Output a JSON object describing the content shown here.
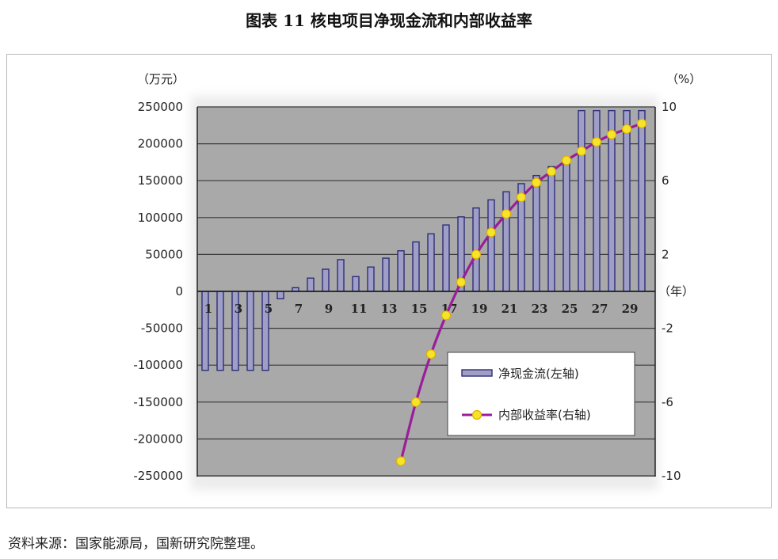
{
  "title": "图表 11   核电项目净现金流和内部收益率",
  "source": "资料来源：国家能源局，国新研究院整理。",
  "colors": {
    "plot_bg": "#a9a9a9",
    "bar_fill": "#9e9ec6",
    "bar_edge": "#2e2e78",
    "line": "#9a1d9a",
    "marker_fill": "#f5e52a",
    "marker_edge": "#e0b000"
  },
  "chart_data": {
    "type": "bar",
    "left_unit": "（万元）",
    "right_unit": "（%）",
    "x_unit": "（年）",
    "x": [
      1,
      2,
      3,
      4,
      5,
      6,
      7,
      8,
      9,
      10,
      11,
      12,
      13,
      14,
      15,
      16,
      17,
      18,
      19,
      20,
      21,
      22,
      23,
      24,
      25,
      26,
      27,
      28,
      29,
      30
    ],
    "x_tick_labels": [
      "1",
      "3",
      "5",
      "7",
      "9",
      "11",
      "13",
      "15",
      "17",
      "19",
      "21",
      "23",
      "25",
      "27",
      "29"
    ],
    "y_left_ticks": [
      "250000",
      "200000",
      "150000",
      "100000",
      "50000",
      "0",
      "-50000",
      "-100000",
      "-150000",
      "-200000",
      "-250000"
    ],
    "y_right_ticks": [
      "10",
      "6",
      "2",
      "-2",
      "-6",
      "-10"
    ],
    "ylim_left": [
      -250000,
      250000
    ],
    "ylim_right": [
      -10,
      10
    ],
    "grid": true,
    "legend_position": "lower-right",
    "legend": [
      "净现金流(左轴)",
      "内部收益率(右轴)"
    ],
    "series": [
      {
        "name": "净现金流(左轴)",
        "type": "bar",
        "axis": "left",
        "values": [
          -107000,
          -107000,
          -107000,
          -107000,
          -107000,
          -10000,
          5000,
          18000,
          30000,
          43000,
          20000,
          33000,
          45000,
          55000,
          67000,
          78000,
          90000,
          101000,
          113000,
          124000,
          135000,
          146000,
          157000,
          169000,
          180000,
          245000,
          245000,
          245000,
          245000,
          245000
        ]
      },
      {
        "name": "内部收益率(右轴)",
        "type": "line",
        "axis": "right",
        "x": [
          14,
          15,
          16,
          17,
          18,
          19,
          20,
          21,
          22,
          23,
          24,
          25,
          26,
          27,
          28,
          29,
          30
        ],
        "values": [
          -9.2,
          -6.0,
          -3.4,
          -1.3,
          0.5,
          2.0,
          3.2,
          4.2,
          5.1,
          5.9,
          6.5,
          7.1,
          7.6,
          8.1,
          8.5,
          8.8,
          9.1
        ]
      }
    ]
  }
}
